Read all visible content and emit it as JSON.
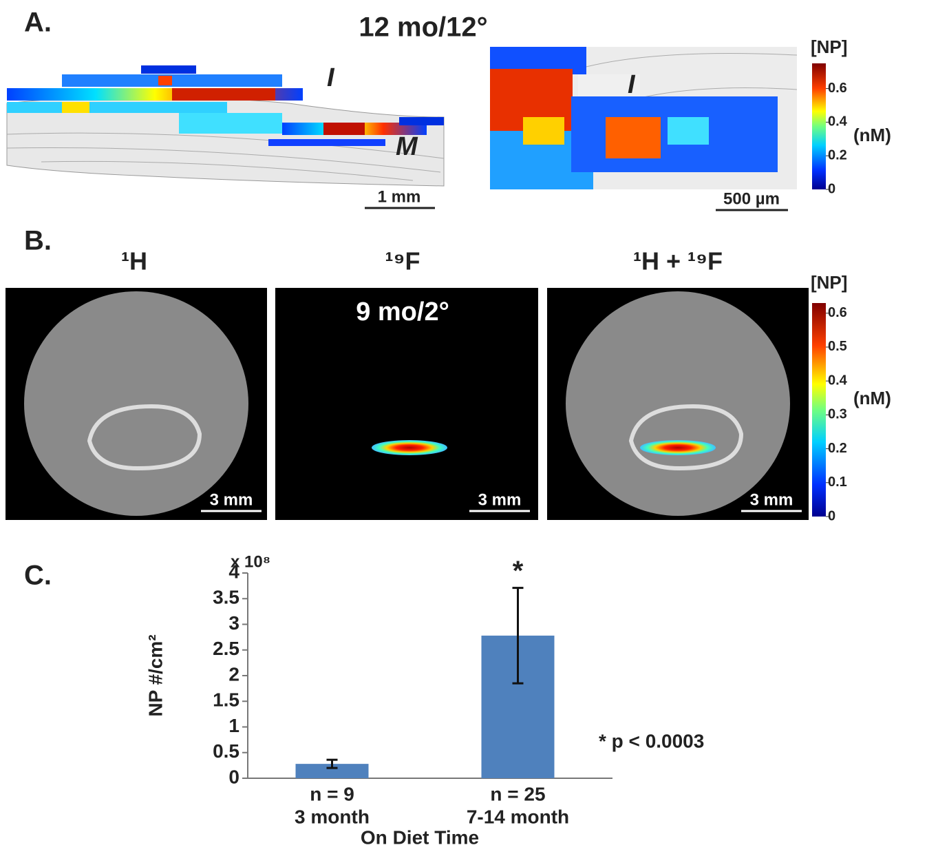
{
  "panel_a": {
    "label": "A.",
    "title": "12 mo/12°",
    "left_labels": [
      "I",
      "M"
    ],
    "left_scale": "1 mm",
    "right_label": "I",
    "right_scale": "500 µm",
    "colorbar": {
      "title": "[NP]",
      "unit": "(nM)",
      "ylim": [
        0,
        0.75
      ],
      "yticks": [
        0,
        0.2,
        0.4,
        0.6
      ]
    }
  },
  "panel_b": {
    "label": "B.",
    "titles": [
      "¹H",
      "¹⁹F",
      "¹H + ¹⁹F"
    ],
    "inset": "9 mo/2°",
    "scale": "3 mm",
    "colorbar": {
      "title": "[NP]",
      "unit": "(nM)",
      "ylim": [
        0,
        0.63
      ],
      "yticks": [
        0,
        0.1,
        0.2,
        0.3,
        0.4,
        0.5,
        0.6
      ]
    }
  },
  "panel_c": {
    "label": "C."
  },
  "chart_data": {
    "type": "bar",
    "y_label": "NP #/cm²",
    "y_multiplier": "x 10⁸",
    "x_label": "On Diet Time",
    "categories": [
      "3 month",
      "7-14 month"
    ],
    "n_labels": [
      "n = 9",
      "n = 25"
    ],
    "values": [
      0.28,
      2.78
    ],
    "errors": [
      0.08,
      0.93
    ],
    "color": "#4f81bd",
    "significance": [
      "",
      "*"
    ],
    "note": "* p < 0.0003",
    "ylim": [
      0,
      4
    ],
    "yticks": [
      0,
      0.5,
      1,
      1.5,
      2,
      2.5,
      3,
      3.5,
      4
    ]
  }
}
